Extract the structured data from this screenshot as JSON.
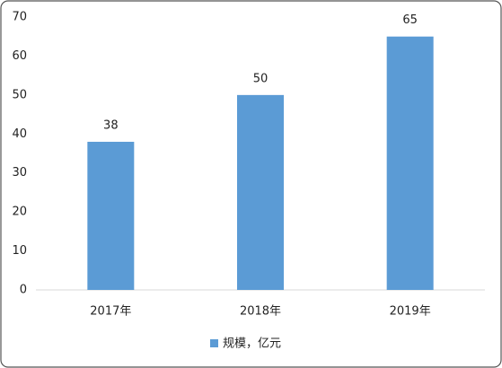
{
  "chart_data": {
    "type": "bar",
    "categories": [
      "2017年",
      "2018年",
      "2019年"
    ],
    "series": [
      {
        "name": "规模，亿元",
        "color": "#5b9bd5",
        "values": [
          38,
          50,
          65
        ]
      }
    ],
    "ylim": [
      0,
      70
    ],
    "yticks": [
      0,
      10,
      20,
      30,
      40,
      50,
      60,
      70
    ],
    "grid": false,
    "legend": "bottom"
  }
}
